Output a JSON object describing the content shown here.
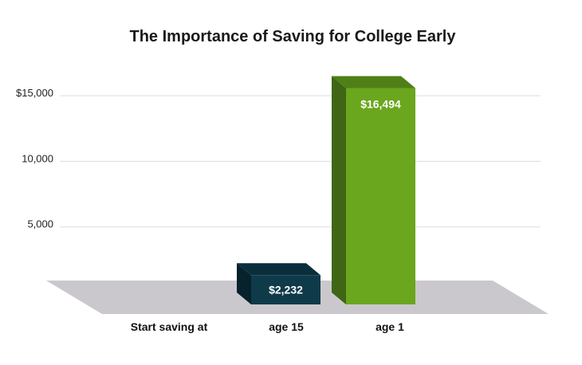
{
  "chart_data": {
    "type": "bar",
    "title": "The Importance of Saving for College Early",
    "xlabel": "Start saving at",
    "ylabel": "",
    "categories": [
      "age 15",
      "age 1"
    ],
    "values": [
      2232,
      16494
    ],
    "data_labels": [
      "$2,232",
      "$16,494"
    ],
    "ylim": [
      0,
      16000
    ],
    "yticks": [
      {
        "value": 5000,
        "label": "5,000"
      },
      {
        "value": 10000,
        "label": "10,000"
      },
      {
        "value": 15000,
        "label": "$15,000"
      }
    ],
    "grid": true,
    "three_d": true,
    "colors": {
      "bars": [
        "#0f3a4a",
        "#6aa61e"
      ],
      "bar_sides": [
        "#07222d",
        "#3f6614"
      ],
      "bar_tops": [
        "#0a2e3b",
        "#4f7f16"
      ],
      "floor": "#cbc8cd",
      "grid": "#dddddd"
    }
  }
}
